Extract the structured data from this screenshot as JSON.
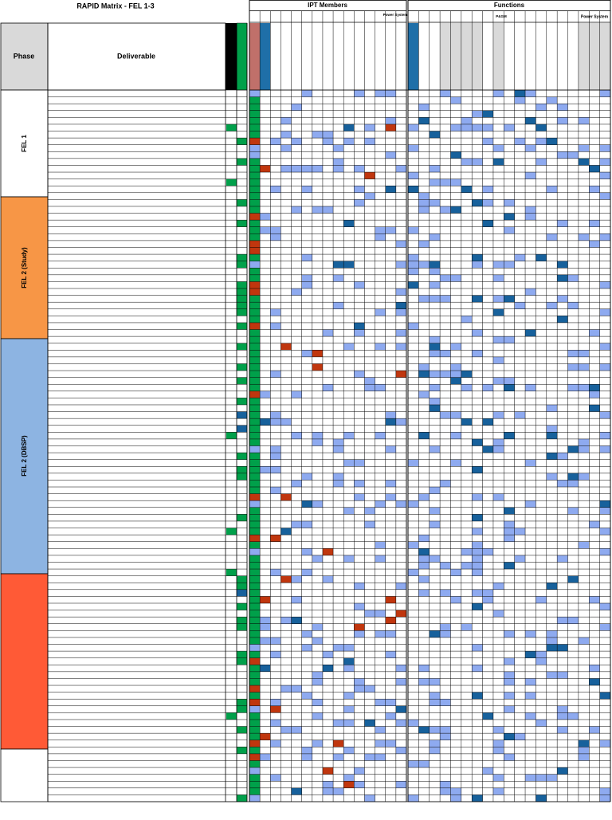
{
  "header": {
    "title": "RAPID Matrix - FEL 1-3",
    "groups": {
      "ipt": "IPT Members",
      "functions": "Functions"
    },
    "subheaders": {
      "ipt_power": "Power System",
      "functions_pgm": "P&GM",
      "functions_power": "Power System"
    },
    "columns": {
      "phase": "Phase",
      "deliverable": "Deliverable"
    }
  },
  "phases": [
    {
      "label": "FEL 1"
    },
    {
      "label": "FEL 2 (Study)"
    },
    {
      "label": "FEL 2 (DBSP)"
    }
  ]
}
